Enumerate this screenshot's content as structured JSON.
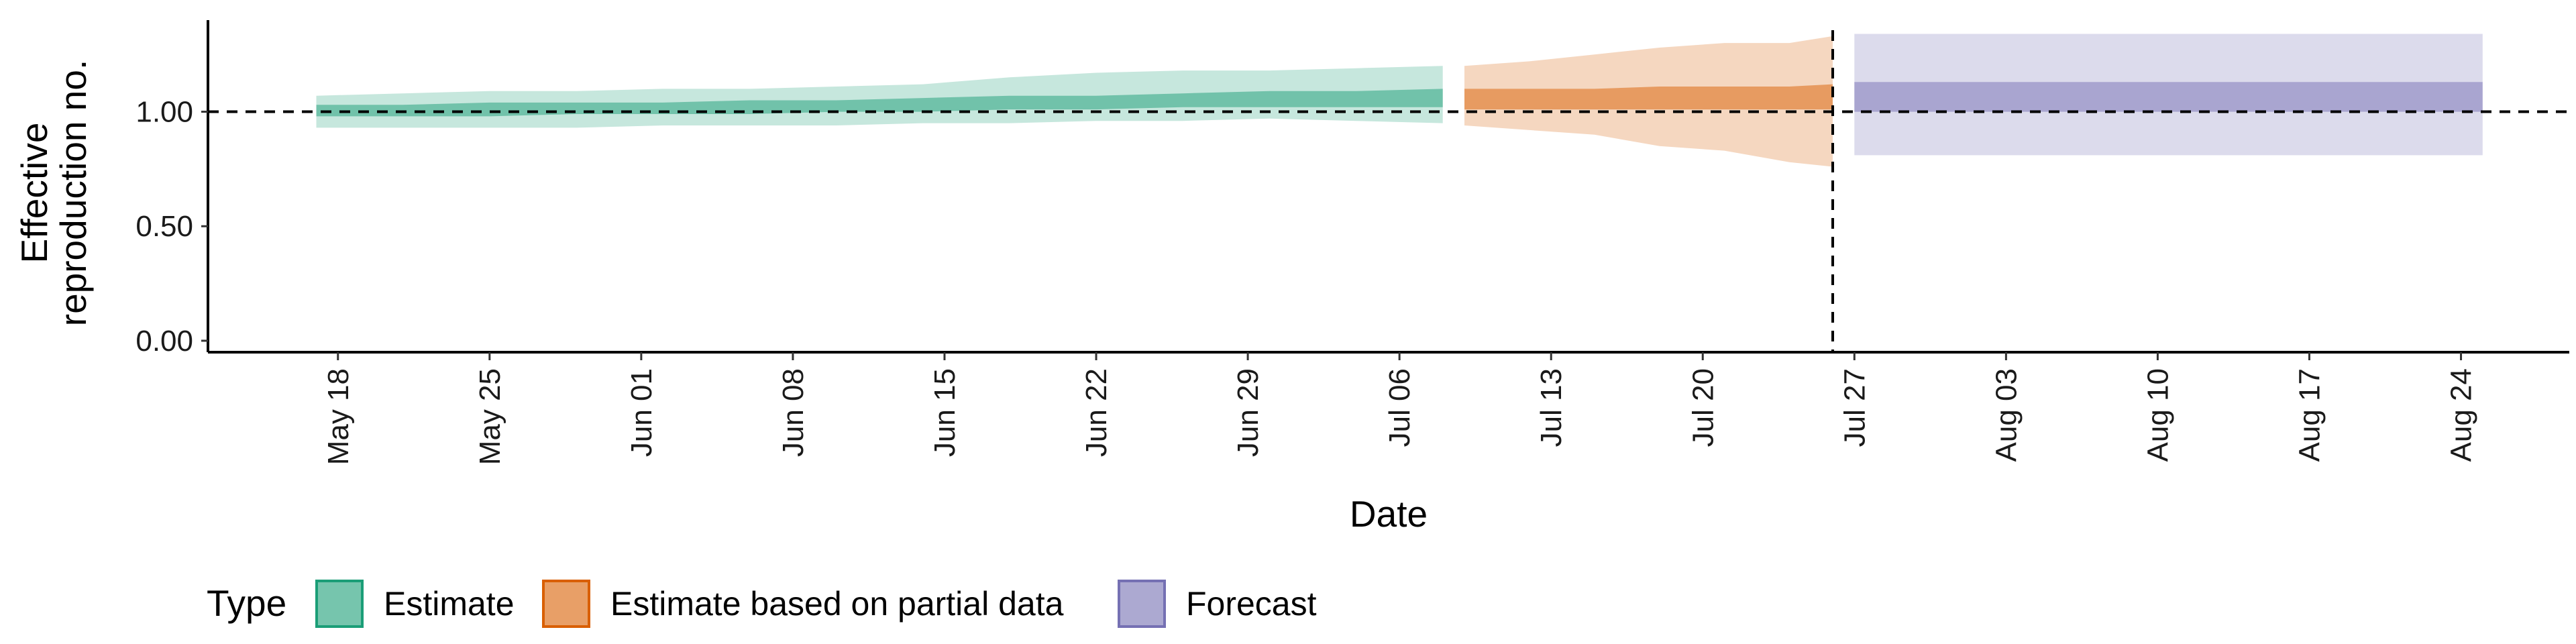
{
  "chart_data": {
    "type": "area",
    "title": "",
    "xlabel": "Date",
    "ylabel_lines": [
      "Effective",
      "reproduction no."
    ],
    "x_ticks": [
      "May 18",
      "May 25",
      "Jun 01",
      "Jun 08",
      "Jun 15",
      "Jun 22",
      "Jun 29",
      "Jul 06",
      "Jul 13",
      "Jul 20",
      "Jul 27",
      "Aug 03",
      "Aug 10",
      "Aug 17",
      "Aug 24"
    ],
    "x_range": [
      "2020-05-12",
      "2020-08-29"
    ],
    "ylim": [
      -0.05,
      1.4
    ],
    "y_ticks": [
      0.0,
      0.5,
      1.0
    ],
    "y_tick_labels": [
      "0.00",
      "0.50",
      "1.00"
    ],
    "reference_hline": 1.0,
    "reference_vline": "2020-07-26",
    "legend": {
      "position": "bottom",
      "title": "Type",
      "items": [
        {
          "label": "Estimate",
          "key": "estimate"
        },
        {
          "label": "Estimate based on partial data",
          "key": "partial"
        },
        {
          "label": "Forecast",
          "key": "forecast"
        }
      ]
    },
    "colors": {
      "estimate": "#1b9e77",
      "partial": "#d95f02",
      "forecast": "#7570b3"
    },
    "series": [
      {
        "name": "Estimate",
        "key": "estimate",
        "points": [
          {
            "date": "2020-05-17",
            "outer": [
              0.93,
              1.07
            ],
            "inner": [
              0.98,
              1.03
            ]
          },
          {
            "date": "2020-05-21",
            "outer": [
              0.93,
              1.08
            ],
            "inner": [
              0.98,
              1.03
            ]
          },
          {
            "date": "2020-05-25",
            "outer": [
              0.93,
              1.09
            ],
            "inner": [
              0.98,
              1.04
            ]
          },
          {
            "date": "2020-05-29",
            "outer": [
              0.93,
              1.09
            ],
            "inner": [
              0.99,
              1.04
            ]
          },
          {
            "date": "2020-06-02",
            "outer": [
              0.94,
              1.1
            ],
            "inner": [
              0.99,
              1.04
            ]
          },
          {
            "date": "2020-06-06",
            "outer": [
              0.94,
              1.1
            ],
            "inner": [
              0.99,
              1.05
            ]
          },
          {
            "date": "2020-06-10",
            "outer": [
              0.94,
              1.11
            ],
            "inner": [
              1.0,
              1.05
            ]
          },
          {
            "date": "2020-06-14",
            "outer": [
              0.95,
              1.12
            ],
            "inner": [
              1.0,
              1.06
            ]
          },
          {
            "date": "2020-06-18",
            "outer": [
              0.95,
              1.15
            ],
            "inner": [
              1.01,
              1.07
            ]
          },
          {
            "date": "2020-06-22",
            "outer": [
              0.96,
              1.17
            ],
            "inner": [
              1.01,
              1.07
            ]
          },
          {
            "date": "2020-06-26",
            "outer": [
              0.96,
              1.18
            ],
            "inner": [
              1.02,
              1.08
            ]
          },
          {
            "date": "2020-06-30",
            "outer": [
              0.97,
              1.18
            ],
            "inner": [
              1.02,
              1.09
            ]
          },
          {
            "date": "2020-07-04",
            "outer": [
              0.96,
              1.19
            ],
            "inner": [
              1.02,
              1.09
            ]
          },
          {
            "date": "2020-07-08",
            "outer": [
              0.95,
              1.2
            ],
            "inner": [
              1.02,
              1.1
            ]
          }
        ]
      },
      {
        "name": "Estimate based on partial data",
        "key": "partial",
        "points": [
          {
            "date": "2020-07-09",
            "outer": [
              0.94,
              1.2
            ],
            "inner": [
              1.01,
              1.1
            ]
          },
          {
            "date": "2020-07-12",
            "outer": [
              0.92,
              1.22
            ],
            "inner": [
              1.01,
              1.1
            ]
          },
          {
            "date": "2020-07-15",
            "outer": [
              0.9,
              1.25
            ],
            "inner": [
              1.01,
              1.1
            ]
          },
          {
            "date": "2020-07-18",
            "outer": [
              0.85,
              1.28
            ],
            "inner": [
              1.01,
              1.11
            ]
          },
          {
            "date": "2020-07-21",
            "outer": [
              0.83,
              1.3
            ],
            "inner": [
              1.01,
              1.11
            ]
          },
          {
            "date": "2020-07-24",
            "outer": [
              0.78,
              1.3
            ],
            "inner": [
              1.01,
              1.11
            ]
          },
          {
            "date": "2020-07-26",
            "outer": [
              0.76,
              1.33
            ],
            "inner": [
              1.01,
              1.12
            ]
          }
        ]
      },
      {
        "name": "Forecast",
        "key": "forecast",
        "points": [
          {
            "date": "2020-07-27",
            "outer": [
              0.81,
              1.34
            ],
            "inner": [
              1.0,
              1.13
            ]
          },
          {
            "date": "2020-08-25",
            "outer": [
              0.81,
              1.34
            ],
            "inner": [
              1.0,
              1.13
            ]
          }
        ]
      }
    ]
  }
}
